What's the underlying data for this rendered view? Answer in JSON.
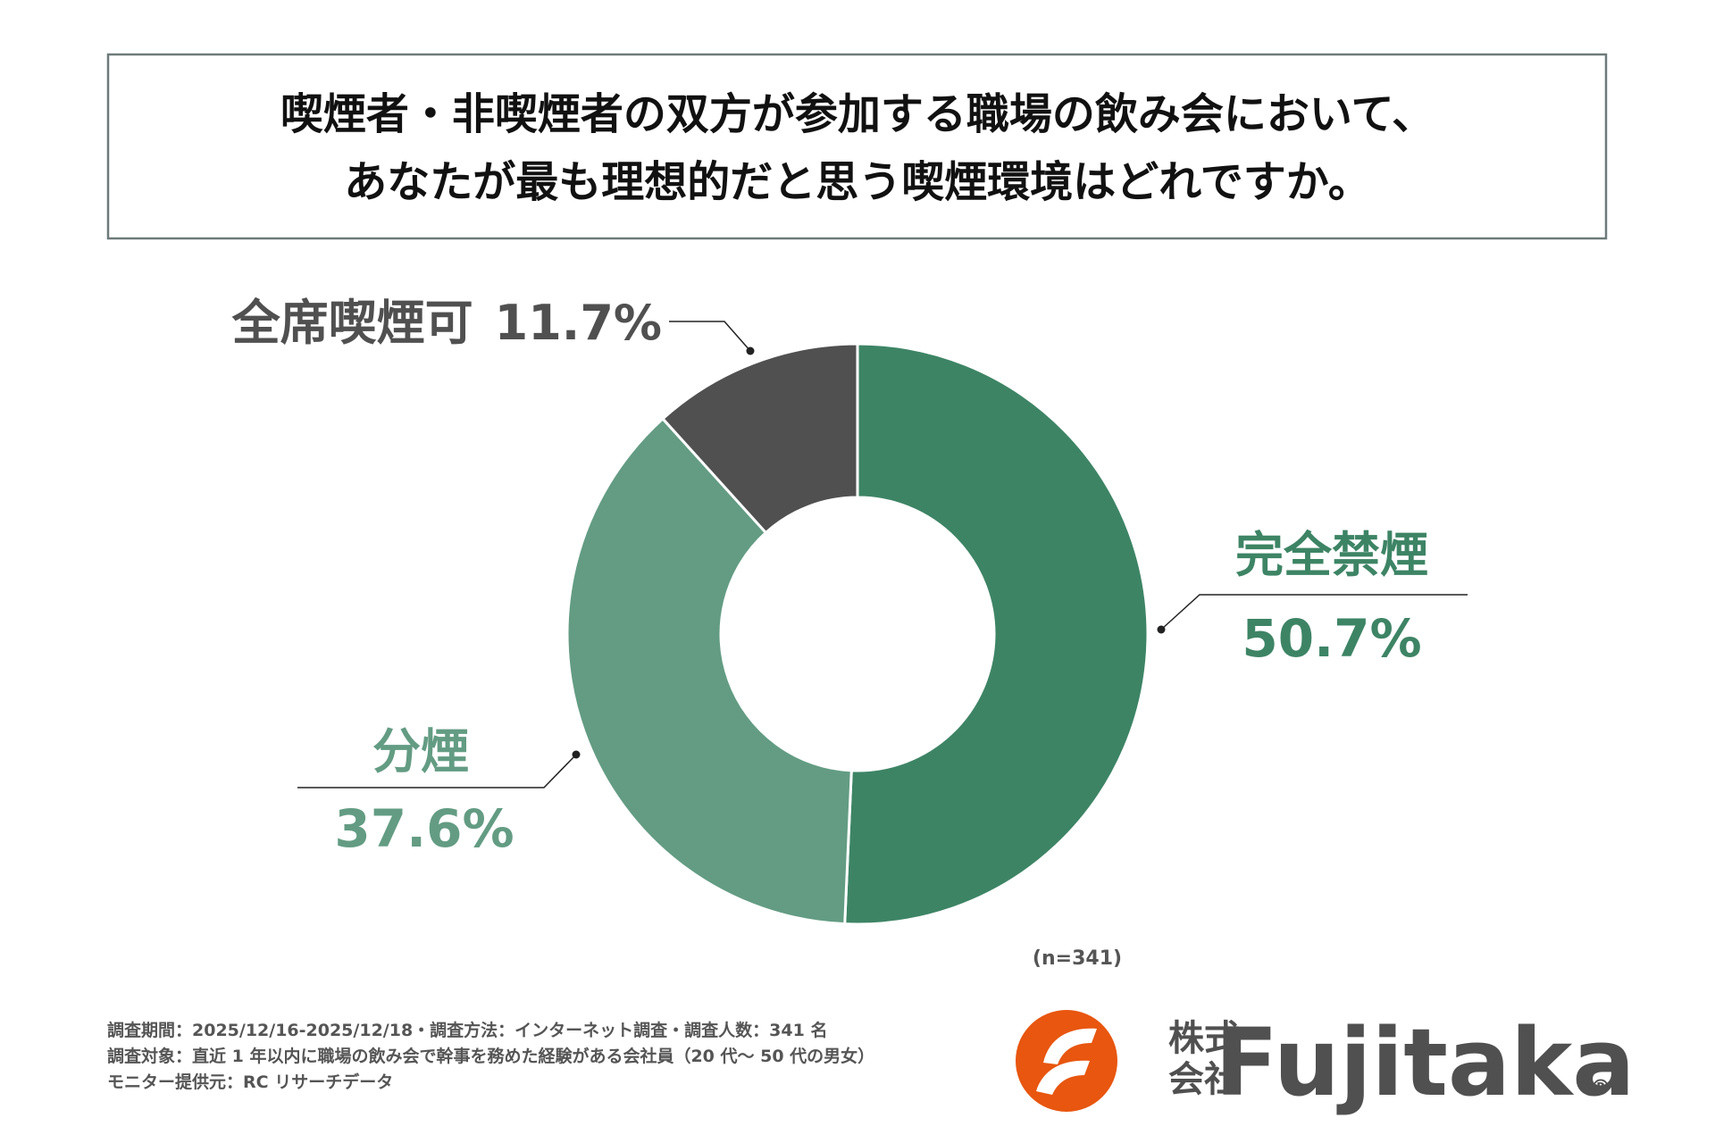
{
  "chart_data": {
    "type": "donut",
    "title": [
      "喫煙者・非喫煙者の双方が参加する職場の飲み会において、",
      "あなたが最も理想的だと思う喫煙環境はどれですか。"
    ],
    "categories": [
      "完全禁煙",
      "分煙",
      "全席喫煙可"
    ],
    "values": [
      50.7,
      37.6,
      11.7
    ],
    "value_labels": [
      "50.7%",
      "37.6%",
      "11.7%"
    ],
    "colors": [
      "#3d8465",
      "#639c83",
      "#505050"
    ],
    "note": "(n=341)",
    "footnotes": [
      "調査期間：2025/12/16-2025/12/18・調査方法：インターネット調査・調査人数：341 名",
      "調査対象：直近 1 年以内に職場の飲み会で幹事を務めた経験がある会社員（20 代～ 50 代の男女）",
      "モニター提供元：RC リサーチデータ"
    ],
    "logo": {
      "prefix": [
        "株式",
        "会社"
      ],
      "name": "Fujitaka",
      "mark": "®"
    }
  }
}
